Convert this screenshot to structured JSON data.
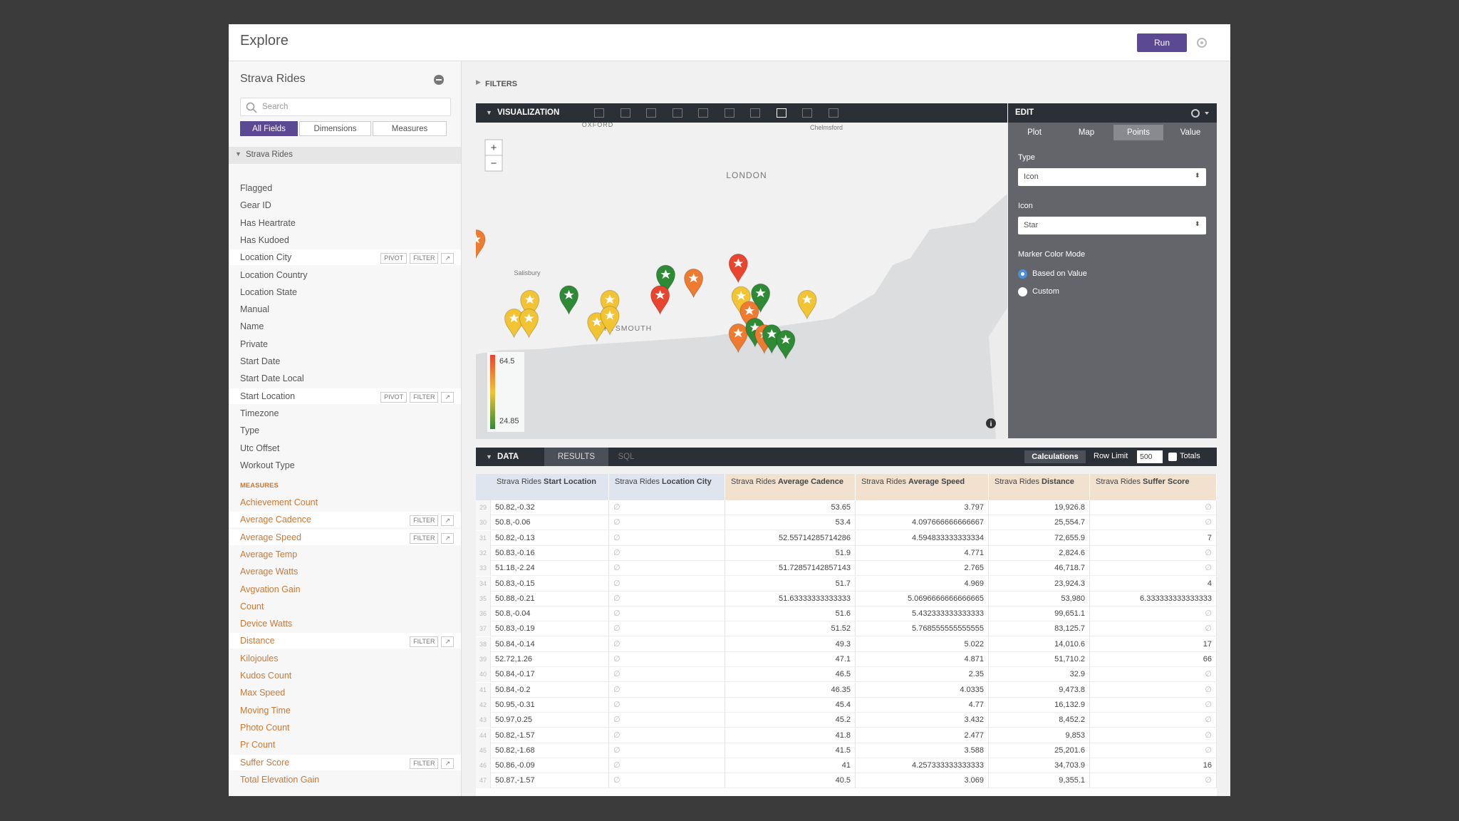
{
  "header": {
    "title": "Explore",
    "run": "Run"
  },
  "sidebar": {
    "explore": "Strava Rides",
    "search": "Search",
    "tabs": [
      "All Fields",
      "Dimensions",
      "Measures"
    ],
    "group": "Strava Rides",
    "dimensions": [
      {
        "label": "Flagged"
      },
      {
        "label": "Gear ID"
      },
      {
        "label": "Has Heartrate"
      },
      {
        "label": "Has Kudoed"
      },
      {
        "label": "Location City",
        "actions": [
          "PIVOT",
          "FILTER"
        ]
      },
      {
        "label": "Location Country"
      },
      {
        "label": "Location State"
      },
      {
        "label": "Manual"
      },
      {
        "label": "Name"
      },
      {
        "label": "Private"
      },
      {
        "label": "Start Date"
      },
      {
        "label": "Start Date Local"
      },
      {
        "label": "Start Location",
        "actions": [
          "PIVOT",
          "FILTER"
        ]
      },
      {
        "label": "Timezone"
      },
      {
        "label": "Type"
      },
      {
        "label": "Utc Offset"
      },
      {
        "label": "Workout Type"
      }
    ],
    "measures_heading": "MEASURES",
    "measures": [
      {
        "label": "Achievement Count"
      },
      {
        "label": "Average Cadence",
        "actions": [
          "FILTER"
        ]
      },
      {
        "label": "Average Speed",
        "actions": [
          "FILTER"
        ]
      },
      {
        "label": "Average Temp"
      },
      {
        "label": "Average Watts"
      },
      {
        "label": "Avgvation Gain"
      },
      {
        "label": "Count"
      },
      {
        "label": "Device Watts"
      },
      {
        "label": "Distance",
        "actions": [
          "FILTER"
        ]
      },
      {
        "label": "Kilojoules"
      },
      {
        "label": "Kudos Count"
      },
      {
        "label": "Max Speed"
      },
      {
        "label": "Moving Time"
      },
      {
        "label": "Photo Count"
      },
      {
        "label": "Pr Count"
      },
      {
        "label": "Suffer Score",
        "actions": [
          "FILTER"
        ]
      },
      {
        "label": "Total Elevation Gain"
      }
    ]
  },
  "filters": "FILTERS",
  "visualization": {
    "title": "VISUALIZATION",
    "zoom": [
      "+",
      "−"
    ],
    "map_labels": [
      "OXFORD",
      "Chelmsford",
      "LONDON",
      "Salisbury",
      "PORTSMOUTH"
    ],
    "legend": [
      "64.5",
      "24.85"
    ]
  },
  "edit": {
    "title": "EDIT",
    "tabs": [
      "Plot",
      "Map",
      "Points",
      "Value"
    ],
    "type_label": "Type",
    "type_value": "Icon",
    "icon_label": "Icon",
    "icon_value": "Star",
    "color_mode_label": "Marker Color Mode",
    "color_modes": [
      "Based on Value",
      "Custom"
    ]
  },
  "data_panel": {
    "tabs": [
      "DATA",
      "RESULTS",
      "SQL"
    ],
    "calculations": "Calculations",
    "row_limit_label": "Row Limit",
    "row_limit": "500",
    "totals": "Totals"
  },
  "table": {
    "columns": [
      {
        "group": "Strava Rides",
        "field": "Start Location"
      },
      {
        "group": "Strava Rides",
        "field": "Location City"
      },
      {
        "group": "Strava Rides",
        "field": "Average Cadence"
      },
      {
        "group": "Strava Rides",
        "field": "Average Speed"
      },
      {
        "group": "Strava Rides",
        "field": "Distance"
      },
      {
        "group": "Strava Rides",
        "field": "Suffer Score"
      }
    ],
    "rows": [
      [
        "29",
        "50.82,-0.32",
        "∅",
        "53.65",
        "3.797",
        "19,926.8",
        "∅"
      ],
      [
        "30",
        "50.8,-0.06",
        "∅",
        "53.4",
        "4.097666666666667",
        "25,554.7",
        "∅"
      ],
      [
        "31",
        "50.82,-0.13",
        "∅",
        "52.55714285714286",
        "4.594833333333334",
        "72,655.9",
        "7"
      ],
      [
        "32",
        "50.83,-0.16",
        "∅",
        "51.9",
        "4.771",
        "2,824.6",
        "∅"
      ],
      [
        "33",
        "51.18,-2.24",
        "∅",
        "51.72857142857143",
        "2.765",
        "46,718.7",
        "∅"
      ],
      [
        "34",
        "50.83,-0.15",
        "∅",
        "51.7",
        "4.969",
        "23,924.3",
        "4"
      ],
      [
        "35",
        "50.88,-0.21",
        "∅",
        "51.63333333333333",
        "5.0696666666666665",
        "53,980",
        "6.333333333333333"
      ],
      [
        "36",
        "50.8,-0.04",
        "∅",
        "51.6",
        "5.432333333333333",
        "99,651.1",
        "∅"
      ],
      [
        "37",
        "50.83,-0.19",
        "∅",
        "51.52",
        "5.768555555555555",
        "83,125.7",
        "∅"
      ],
      [
        "38",
        "50.84,-0.14",
        "∅",
        "49.3",
        "5.022",
        "14,010.6",
        "17"
      ],
      [
        "39",
        "52.72,1.26",
        "∅",
        "47.1",
        "4.871",
        "51,710.2",
        "66"
      ],
      [
        "40",
        "50.84,-0.17",
        "∅",
        "46.5",
        "2.35",
        "32.9",
        "∅"
      ],
      [
        "41",
        "50.84,-0.2",
        "∅",
        "46.35",
        "4.0335",
        "9,473.8",
        "∅"
      ],
      [
        "42",
        "50.95,-0.31",
        "∅",
        "45.4",
        "4.77",
        "16,132.9",
        "∅"
      ],
      [
        "43",
        "50.97,0.25",
        "∅",
        "45.2",
        "3.432",
        "8,452.2",
        "∅"
      ],
      [
        "44",
        "50.82,-1.57",
        "∅",
        "41.8",
        "2.477",
        "9,853",
        "∅"
      ],
      [
        "45",
        "50.82,-1.68",
        "∅",
        "41.5",
        "3.588",
        "25,201.6",
        "∅"
      ],
      [
        "46",
        "50.86,-0.09",
        "∅",
        "41",
        "4.257333333333333",
        "34,703.9",
        "16"
      ],
      [
        "47",
        "50.87,-1.57",
        "∅",
        "40.5",
        "3.069",
        "9,355.1",
        "∅"
      ]
    ]
  }
}
